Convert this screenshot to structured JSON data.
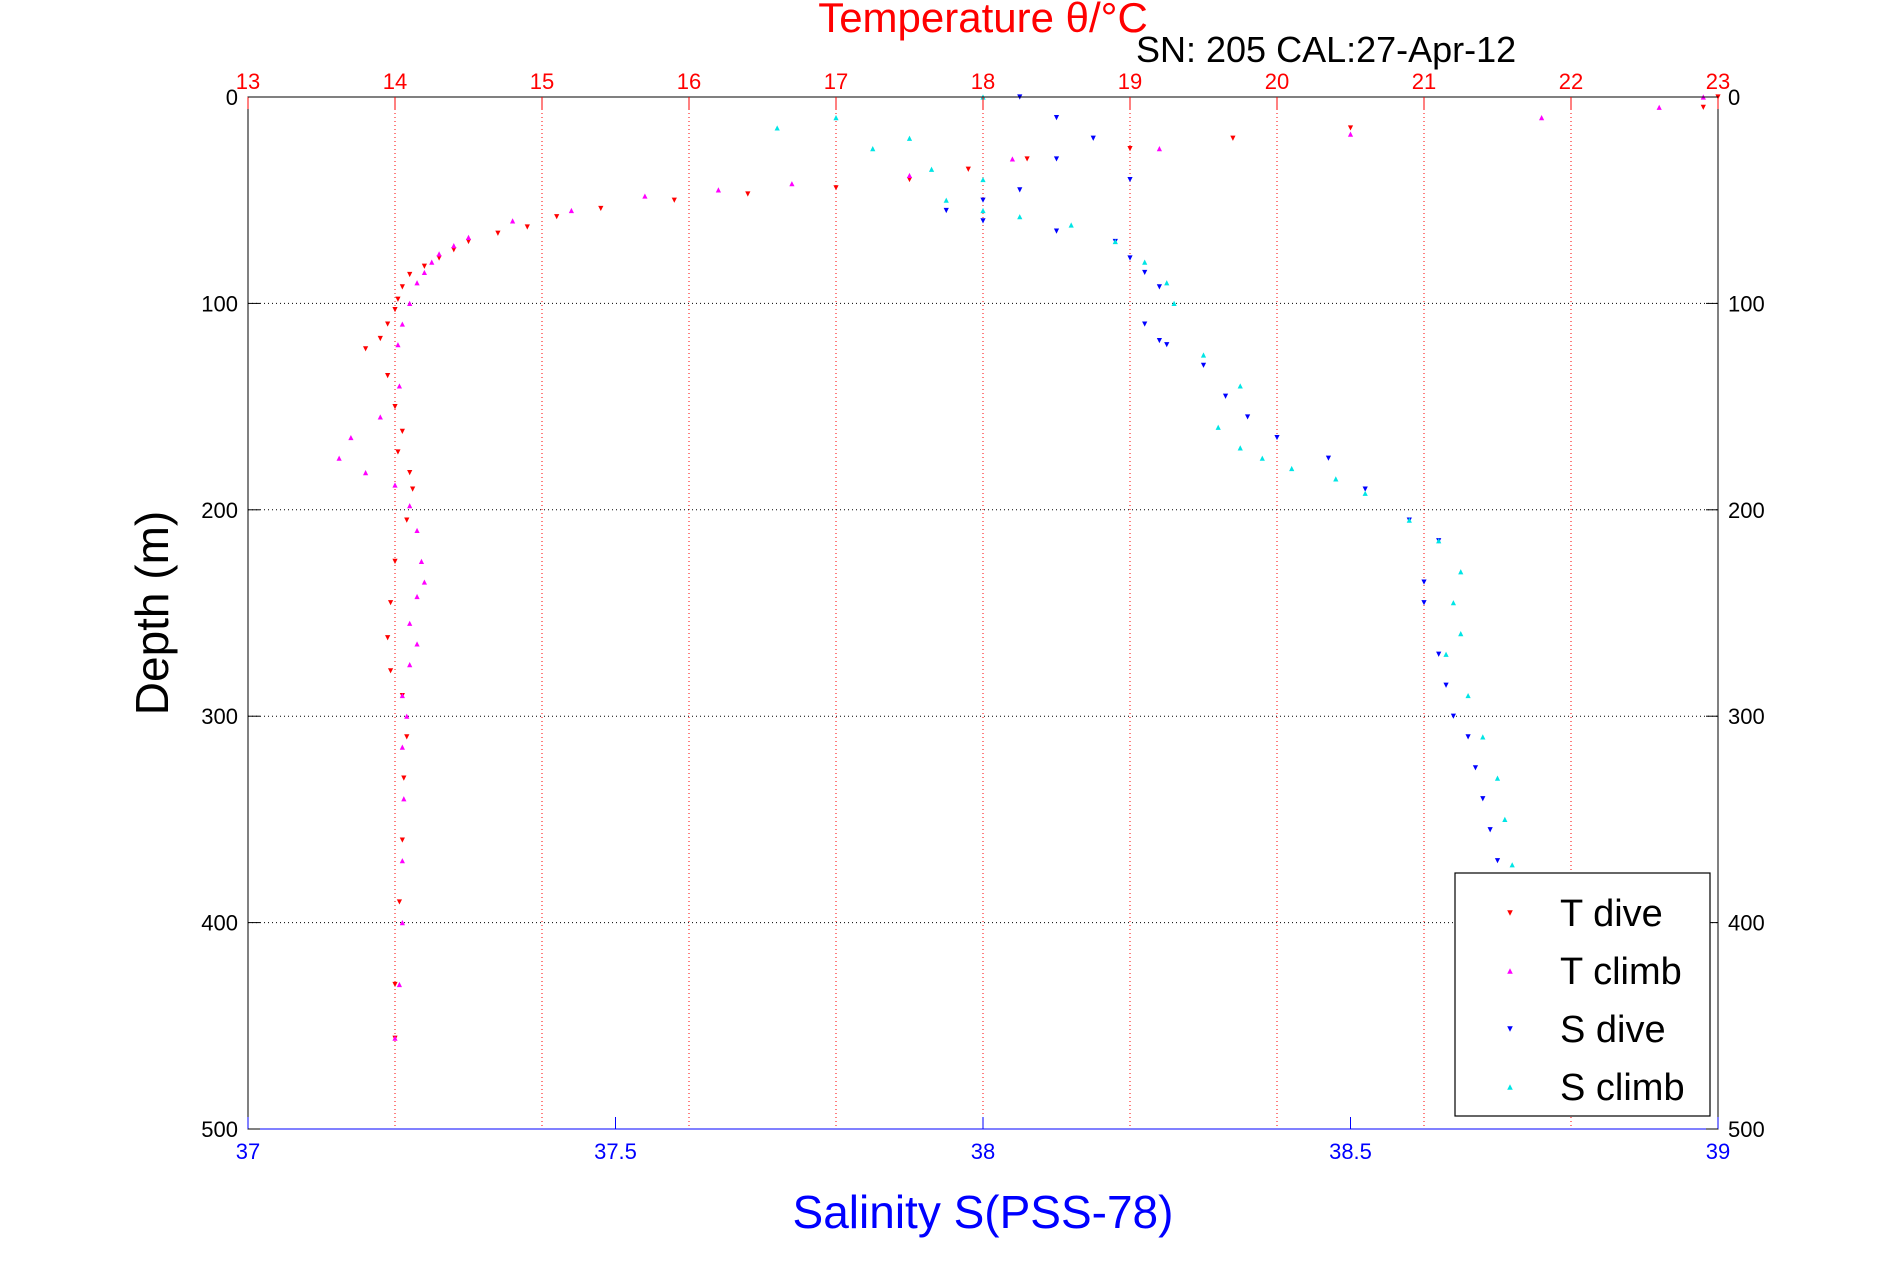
{
  "chart_data": {
    "type": "scatter",
    "title": "Temperature θ/°C",
    "annotation": "SN: 205  CAL:27-Apr-12",
    "xlabel_top": "Temperature θ/°C",
    "xlabel": "Salinity S(PSS-78)",
    "ylabel": "Depth (m)",
    "temp_axis": {
      "range": [
        13,
        23
      ],
      "ticks": [
        "13",
        "14",
        "15",
        "16",
        "17",
        "18",
        "19",
        "20",
        "21",
        "22",
        "23"
      ],
      "color": "#ff0000",
      "grid": true
    },
    "sal_axis": {
      "range": [
        37,
        39
      ],
      "ticks": [
        "37",
        "37.5",
        "38",
        "38.5",
        "39"
      ],
      "color": "#0000ff"
    },
    "depth_axis": {
      "range": [
        0,
        500
      ],
      "reversed": true,
      "ticks": [
        "0",
        "100",
        "200",
        "300",
        "400",
        "500"
      ],
      "grid": true
    },
    "legend": {
      "position": "bottom-right"
    },
    "series": [
      {
        "name": "T dive",
        "axis": "temp",
        "color": "#ff0000",
        "marker": "triangle-down",
        "x": [
          23.0,
          22.9,
          20.5,
          19.7,
          19.0,
          18.3,
          17.9,
          17.5,
          17.0,
          16.4,
          15.9,
          15.4,
          15.1,
          14.9,
          14.7,
          14.5,
          14.4,
          14.3,
          14.2,
          14.1,
          14.05,
          14.02,
          14.0,
          13.95,
          13.9,
          13.8,
          13.95,
          14.0,
          14.05,
          14.02,
          14.1,
          14.12,
          14.08,
          14.0,
          13.97,
          13.95,
          13.97,
          14.05,
          14.08,
          14.06,
          14.05,
          14.03,
          14.0,
          14.0
        ],
        "y": [
          0,
          5,
          15,
          20,
          25,
          30,
          35,
          40,
          44,
          47,
          50,
          54,
          58,
          63,
          66,
          70,
          74,
          78,
          82,
          86,
          92,
          98,
          103,
          110,
          117,
          122,
          135,
          150,
          162,
          172,
          182,
          190,
          205,
          225,
          245,
          262,
          278,
          290,
          310,
          330,
          360,
          390,
          430,
          456
        ]
      },
      {
        "name": "T climb",
        "axis": "temp",
        "color": "#ff00ff",
        "marker": "triangle-up",
        "x": [
          22.9,
          22.6,
          21.8,
          20.5,
          19.2,
          18.2,
          17.5,
          16.7,
          16.2,
          15.7,
          15.2,
          14.8,
          14.5,
          14.4,
          14.3,
          14.25,
          14.2,
          14.15,
          14.1,
          14.05,
          14.02,
          14.03,
          13.9,
          13.7,
          13.62,
          13.8,
          14.0,
          14.1,
          14.15,
          14.18,
          14.2,
          14.15,
          14.1,
          14.15,
          14.1,
          14.05,
          14.08,
          14.05,
          14.06,
          14.05,
          14.05,
          14.03,
          14.0
        ],
        "y": [
          0,
          5,
          10,
          18,
          25,
          30,
          38,
          42,
          45,
          48,
          55,
          60,
          68,
          72,
          76,
          80,
          85,
          90,
          100,
          110,
          120,
          140,
          155,
          165,
          175,
          182,
          188,
          198,
          210,
          225,
          235,
          242,
          255,
          265,
          275,
          290,
          300,
          315,
          340,
          370,
          400,
          430,
          456
        ]
      },
      {
        "name": "S dive",
        "axis": "sal",
        "color": "#0000ff",
        "marker": "triangle-down",
        "x": [
          38.05,
          38.1,
          38.15,
          38.1,
          38.2,
          38.05,
          38.0,
          37.95,
          38.0,
          38.1,
          38.18,
          38.2,
          38.22,
          38.24,
          38.22,
          38.24,
          38.25,
          38.3,
          38.33,
          38.36,
          38.4,
          38.47,
          38.52,
          38.58,
          38.62,
          38.6,
          38.6,
          38.62,
          38.63,
          38.64,
          38.66,
          38.67,
          38.68,
          38.69,
          38.7
        ],
        "y": [
          0,
          10,
          20,
          30,
          40,
          45,
          50,
          55,
          60,
          65,
          70,
          78,
          85,
          92,
          110,
          118,
          120,
          130,
          145,
          155,
          165,
          175,
          190,
          205,
          215,
          235,
          245,
          270,
          285,
          300,
          310,
          325,
          340,
          355,
          370
        ]
      },
      {
        "name": "S climb",
        "axis": "sal",
        "color": "#00e5e5",
        "marker": "triangle-up",
        "x": [
          38.0,
          37.8,
          37.72,
          37.9,
          37.85,
          37.93,
          38.0,
          37.95,
          38.0,
          38.05,
          38.12,
          38.18,
          38.22,
          38.25,
          38.26,
          38.3,
          38.35,
          38.32,
          38.35,
          38.38,
          38.42,
          38.48,
          38.52,
          38.58,
          38.62,
          38.65,
          38.64,
          38.65,
          38.63,
          38.66,
          38.68,
          38.7,
          38.71,
          38.72
        ],
        "y": [
          0,
          10,
          15,
          20,
          25,
          35,
          40,
          50,
          55,
          58,
          62,
          70,
          80,
          90,
          100,
          125,
          140,
          160,
          170,
          175,
          180,
          185,
          192,
          205,
          215,
          230,
          245,
          260,
          270,
          290,
          310,
          330,
          350,
          372
        ]
      }
    ]
  }
}
